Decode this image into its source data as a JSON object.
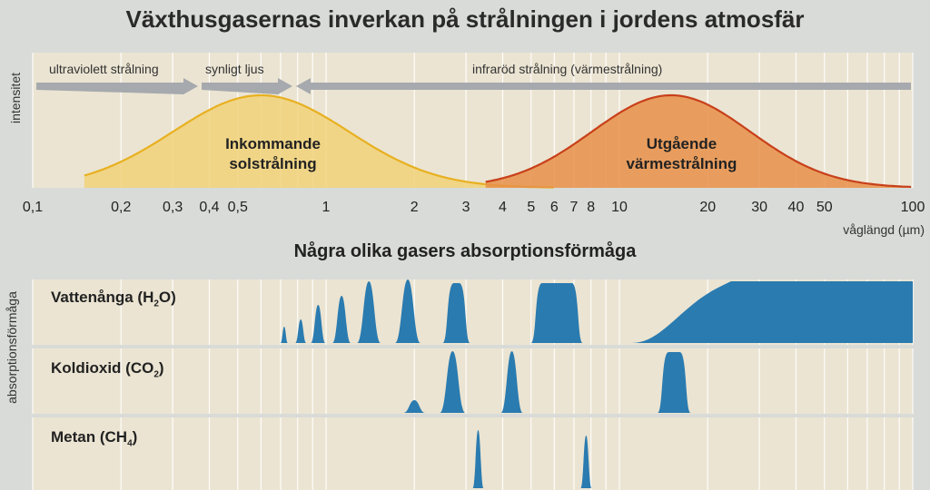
{
  "title": "Växthusgasernas inverkan på strålningen i jordens atmosfär",
  "top_chart": {
    "ylabel": "intensitet",
    "xlabel": "våglängd (µm)",
    "x_scale": "log",
    "xlim": [
      0.1,
      100
    ],
    "ticks": [
      {
        "v": 0.1,
        "label": "0,1"
      },
      {
        "v": 0.2,
        "label": "0,2"
      },
      {
        "v": 0.3,
        "label": "0,3"
      },
      {
        "v": 0.4,
        "label": "0,4"
      },
      {
        "v": 0.5,
        "label": "0,5"
      },
      {
        "v": 1,
        "label": "1"
      },
      {
        "v": 2,
        "label": "2"
      },
      {
        "v": 3,
        "label": "3"
      },
      {
        "v": 4,
        "label": "4"
      },
      {
        "v": 5,
        "label": "5"
      },
      {
        "v": 6,
        "label": "6"
      },
      {
        "v": 7,
        "label": "7"
      },
      {
        "v": 8,
        "label": "8"
      },
      {
        "v": 10,
        "label": "10"
      },
      {
        "v": 20,
        "label": "20"
      },
      {
        "v": 30,
        "label": "30"
      },
      {
        "v": 40,
        "label": "40"
      },
      {
        "v": 50,
        "label": "50"
      },
      {
        "v": 100,
        "label": "100"
      }
    ],
    "bands": [
      {
        "label": "ultraviolett strålning",
        "from": 0.1,
        "to": 0.4
      },
      {
        "label": "synligt ljus",
        "from": 0.4,
        "to": 0.7
      },
      {
        "label": "infraröd strålning (värmestrålning)",
        "from": 0.7,
        "to": 100
      }
    ],
    "curves": [
      {
        "label_line1": "Inkommande",
        "label_line2": "solstrålning",
        "color": "#e8b020",
        "fill": "#f1d27a"
      },
      {
        "label_line1": "Utgående",
        "label_line2": "värmestrålning",
        "color": "#c8401a",
        "fill": "#e8914a"
      }
    ]
  },
  "chart_data": {
    "type": "area",
    "x_scale": "log",
    "xlim": [
      0.1,
      100
    ],
    "series": [
      {
        "name": "Inkommande solstrålning",
        "peak_x": 0.6,
        "x": [
          0.2,
          0.3,
          0.4,
          0.5,
          0.6,
          0.8,
          1,
          2,
          3,
          5
        ],
        "y": [
          0.02,
          0.35,
          0.75,
          0.95,
          1.0,
          0.9,
          0.7,
          0.18,
          0.06,
          0.0
        ]
      },
      {
        "name": "Utgående värmestrålning",
        "peak_x": 15,
        "x": [
          4,
          5,
          6,
          8,
          10,
          15,
          20,
          30,
          50,
          100
        ],
        "y": [
          0.0,
          0.05,
          0.15,
          0.45,
          0.75,
          1.0,
          0.92,
          0.6,
          0.25,
          0.0
        ]
      }
    ]
  },
  "subtitle": "Några olika gasers absorptionsförmåga",
  "bottom_ylabel": "absorptionsförmåga",
  "gases": [
    {
      "name": "Vattenånga (H",
      "sub": "2",
      "tail": "O)"
    },
    {
      "name": "Koldioxid (CO",
      "sub": "2",
      "tail": ")"
    },
    {
      "name": "Metan (CH",
      "sub": "4",
      "tail": ")"
    }
  ],
  "colors": {
    "background": "#d9dbd8",
    "panel": "#ebe4d2",
    "grid": "#ffffff",
    "absorption": "#2a7bb0",
    "band_arrow": "#a6a9ad"
  }
}
